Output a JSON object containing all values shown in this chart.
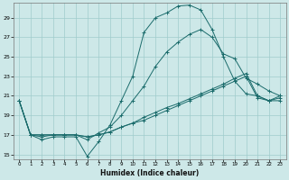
{
  "xlabel": "Humidex (Indice chaleur)",
  "bg_color": "#cde8e8",
  "grid_color": "#a0cccc",
  "line_color": "#1a6b6b",
  "xlim": [
    -0.5,
    23.5
  ],
  "ylim": [
    14.5,
    30.5
  ],
  "xticks": [
    0,
    1,
    2,
    3,
    4,
    5,
    6,
    7,
    8,
    9,
    10,
    11,
    12,
    13,
    14,
    15,
    16,
    17,
    18,
    19,
    20,
    21,
    22,
    23
  ],
  "yticks": [
    15,
    17,
    19,
    21,
    23,
    25,
    27,
    29
  ],
  "curves": [
    {
      "x": [
        0,
        1,
        2,
        3,
        4,
        5,
        6,
        7,
        8,
        9,
        10,
        11,
        12,
        13,
        14,
        15,
        16,
        17,
        18,
        19,
        20,
        21,
        22,
        23
      ],
      "y": [
        20.5,
        17.0,
        16.5,
        16.8,
        16.8,
        16.8,
        14.8,
        16.3,
        18.0,
        20.5,
        23.0,
        27.5,
        29.0,
        29.5,
        30.2,
        30.3,
        29.8,
        27.8,
        25.0,
        22.5,
        21.2,
        21.0,
        20.5,
        20.5
      ]
    },
    {
      "x": [
        0,
        1,
        2,
        3,
        4,
        5,
        6,
        7,
        8,
        9,
        10,
        11,
        12,
        13,
        14,
        15,
        16,
        17,
        18,
        19,
        20,
        21,
        22,
        23
      ],
      "y": [
        20.5,
        17.0,
        16.8,
        17.0,
        17.0,
        17.0,
        16.5,
        17.2,
        17.8,
        19.0,
        20.5,
        22.0,
        24.0,
        25.5,
        26.5,
        27.3,
        27.8,
        27.0,
        25.3,
        24.8,
        22.8,
        22.2,
        21.5,
        21.0
      ]
    },
    {
      "x": [
        0,
        1,
        2,
        3,
        4,
        5,
        6,
        7,
        8,
        9,
        10,
        11,
        12,
        13,
        14,
        15,
        16,
        17,
        18,
        19,
        20,
        21,
        22,
        23
      ],
      "y": [
        20.5,
        17.0,
        17.0,
        17.0,
        17.0,
        17.0,
        16.8,
        17.0,
        17.3,
        17.8,
        18.2,
        18.5,
        19.0,
        19.5,
        20.0,
        20.5,
        21.0,
        21.5,
        22.0,
        22.5,
        23.0,
        20.8,
        20.5,
        20.8
      ]
    },
    {
      "x": [
        0,
        1,
        2,
        3,
        4,
        5,
        6,
        7,
        8,
        9,
        10,
        11,
        12,
        13,
        14,
        15,
        16,
        17,
        18,
        19,
        20,
        21,
        22,
        23
      ],
      "y": [
        20.5,
        17.0,
        17.0,
        17.0,
        17.0,
        17.0,
        16.8,
        17.0,
        17.3,
        17.8,
        18.2,
        18.8,
        19.3,
        19.8,
        20.2,
        20.7,
        21.2,
        21.7,
        22.2,
        22.8,
        23.3,
        21.0,
        20.5,
        21.0
      ]
    }
  ]
}
